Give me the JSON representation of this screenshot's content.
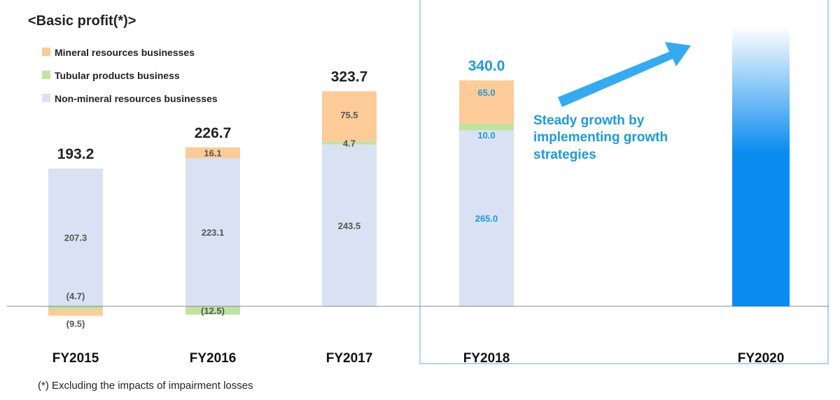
{
  "chart_data": {
    "type": "bar",
    "title": "<Basic profit(*)>",
    "categories": [
      "FY2015",
      "FY2016",
      "FY2017",
      "FY2018",
      "FY2020"
    ],
    "series": [
      {
        "name": "Non-mineral resources businesses",
        "values": [
          207.3,
          223.1,
          243.5,
          265.0,
          null
        ],
        "labels": [
          "207.3",
          "223.1",
          "243.5",
          "265.0",
          ""
        ]
      },
      {
        "name": "Tubular products business",
        "values": [
          -4.7,
          -12.5,
          4.7,
          10.0,
          null
        ],
        "labels": [
          "(4.7)",
          "(12.5)",
          "4.7",
          "10.0",
          ""
        ]
      },
      {
        "name": "Mineral resources businesses",
        "values": [
          -9.5,
          16.1,
          75.5,
          65.0,
          null
        ],
        "labels": [
          "(9.5)",
          "16.1",
          "75.5",
          "65.0",
          ""
        ]
      }
    ],
    "totals": [
      "193.2",
      "226.7",
      "323.7",
      "340.0",
      ""
    ],
    "stacked": true,
    "highlighted_category": "FY2018",
    "future_category": "FY2020",
    "annotation": [
      "Steady growth by",
      "implementing growth",
      "strategies"
    ],
    "footnote": "(*) Excluding the impacts of impairment losses",
    "colors": {
      "mineral": "#FDCB97",
      "tubular": "#BEE49E",
      "non_mineral": "#D9E2F3",
      "highlight_text": "#1A9BE0",
      "default_text": "#222222",
      "segment_text": "#555555",
      "arrow": "#33AAF2",
      "gradient_bar": "#0A8CEF",
      "frame_line": "#6EC0E4",
      "axis_line": "#888888"
    }
  }
}
